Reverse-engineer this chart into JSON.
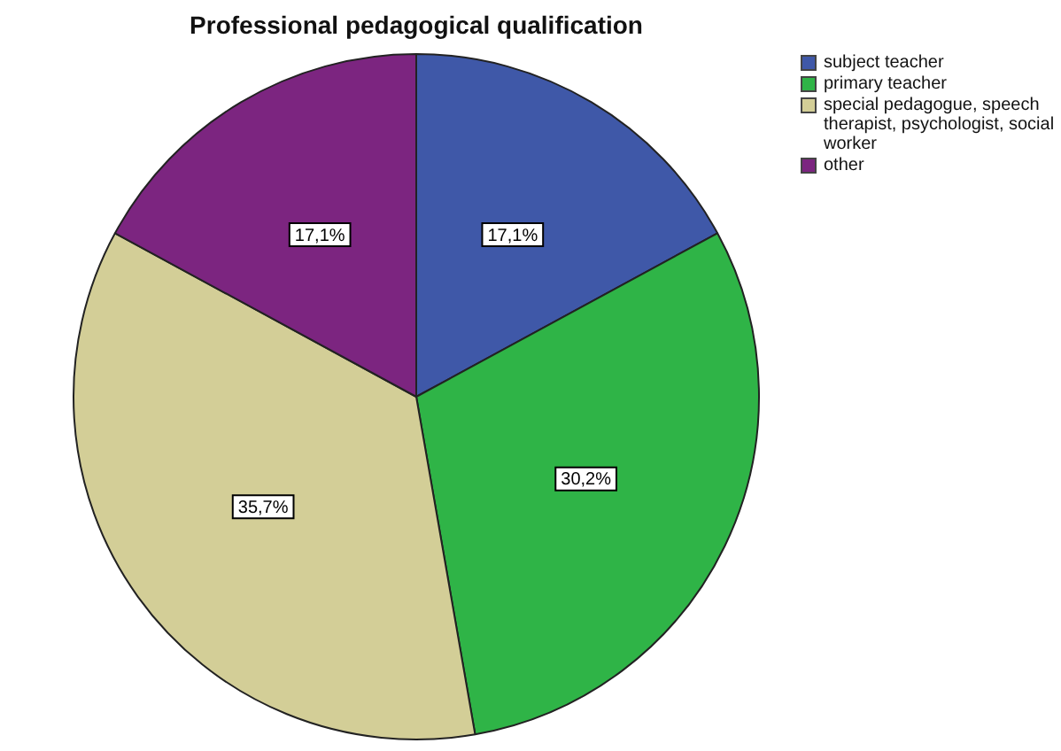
{
  "chart_data": {
    "type": "pie",
    "title": "Professional pedagogical qualification",
    "categories": [
      "subject teacher",
      "primary teacher",
      "special pedagogue, speech therapist, psychologist, social worker",
      "other"
    ],
    "values": [
      17.1,
      30.2,
      35.7,
      17.1
    ],
    "colors": [
      "#3f58a8",
      "#2fb447",
      "#d3ce97",
      "#7c2580"
    ],
    "value_labels": [
      "17,1%",
      "30,2%",
      "35,7%",
      "17,1%"
    ],
    "legend": "top right"
  }
}
